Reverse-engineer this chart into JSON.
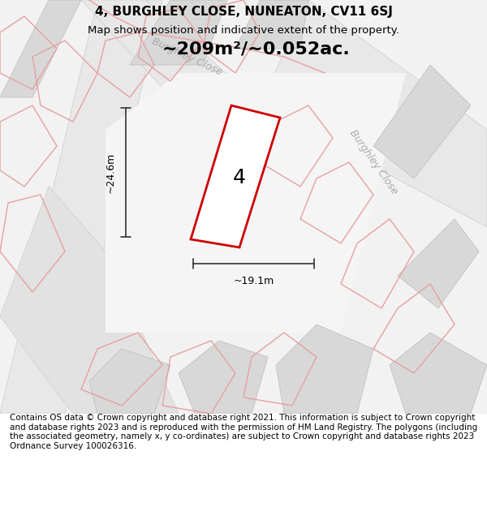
{
  "title_line1": "4, BURGHLEY CLOSE, NUNEATON, CV11 6SJ",
  "title_line2": "Map shows position and indicative extent of the property.",
  "footer_text": "Contains OS data © Crown copyright and database right 2021. This information is subject to Crown copyright and database rights 2023 and is reproduced with the permission of HM Land Registry. The polygons (including the associated geometry, namely x, y co-ordinates) are subject to Crown copyright and database rights 2023 Ordnance Survey 100026316.",
  "area_label": "~209m²/~0.052ac.",
  "property_number": "4",
  "dim_height": "~24.6m",
  "dim_width": "~19.1m",
  "street_label1": "Burghley Close",
  "street_label2": "Burghley Close",
  "bg_color": "#f5f5f5",
  "map_bg": "#f0f0f0",
  "road_fill": "#e8e8e8",
  "block_fill": "#e0e0e0",
  "red_color": "#cc0000",
  "dim_color": "#333333",
  "title_fontsize": 11,
  "subtitle_fontsize": 9.5,
  "footer_fontsize": 7.5,
  "area_label_fontsize": 16
}
